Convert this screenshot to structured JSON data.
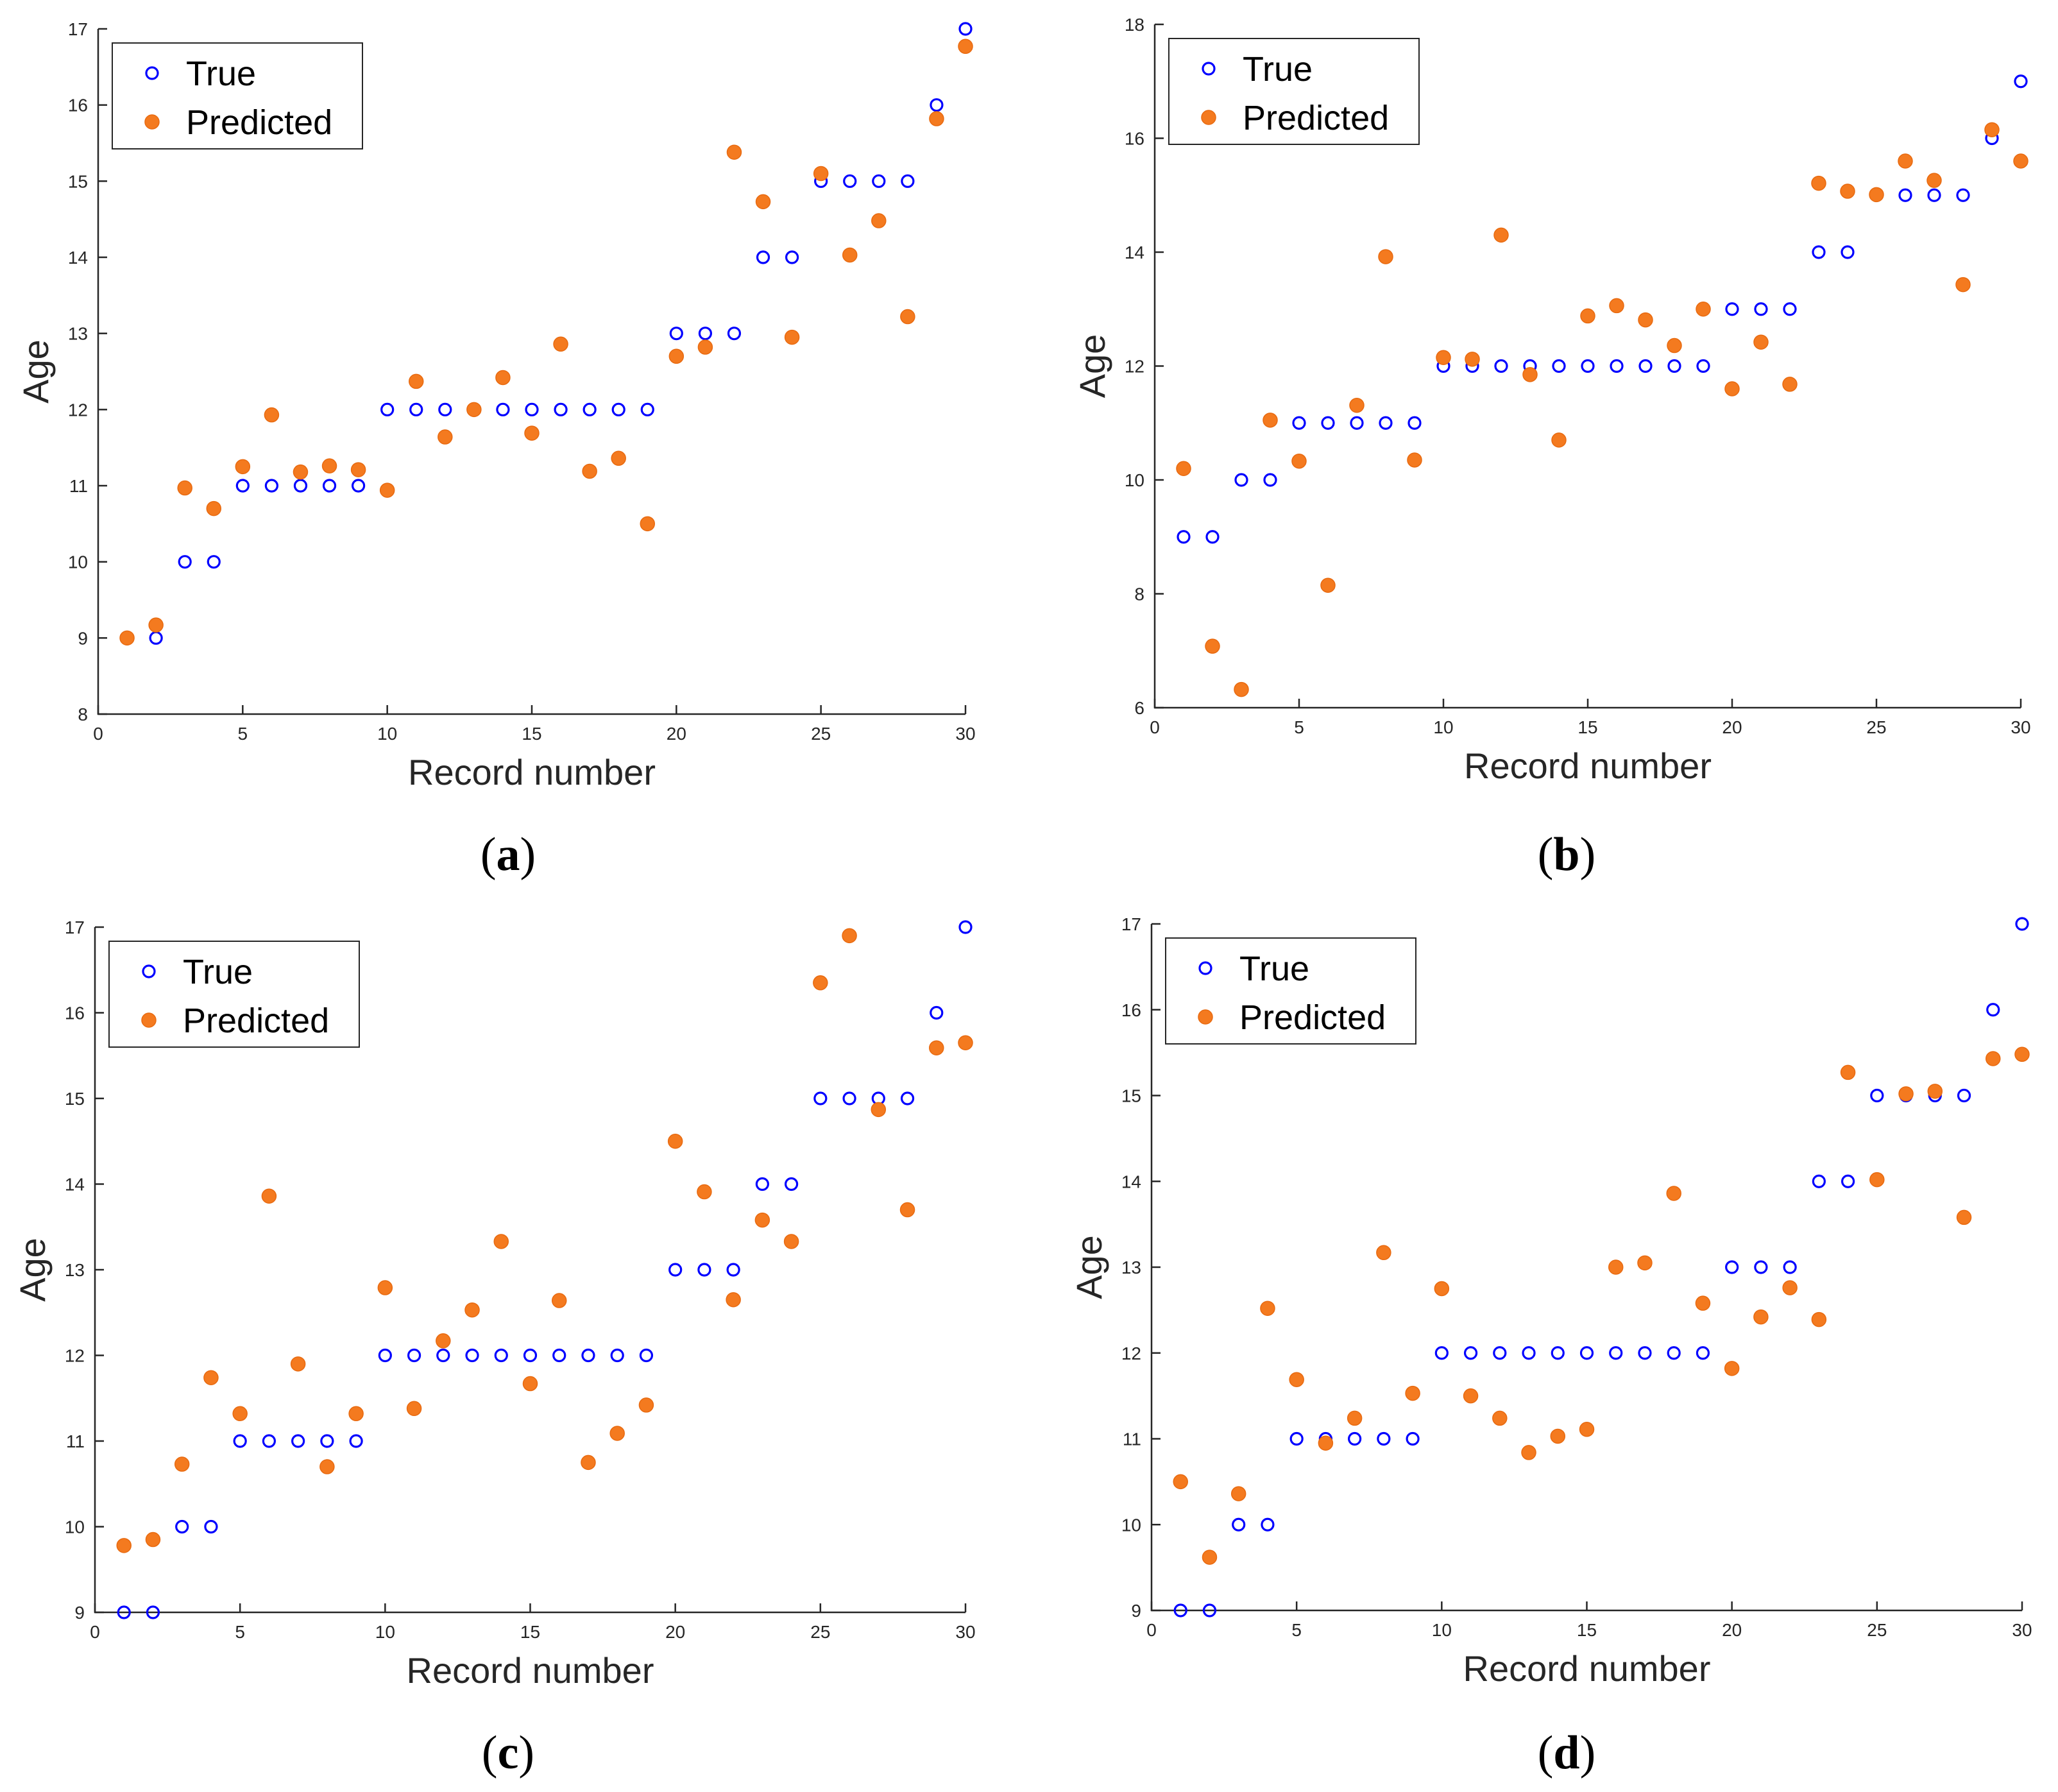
{
  "colors": {
    "true_marker": "#0000ff",
    "predicted_marker": "#f47a1f",
    "axis": "#262626",
    "legend_border": "#262626"
  },
  "chart_data": [
    {
      "type": "scatter",
      "panel_label": "a",
      "caption_open": "(",
      "caption_close": ")",
      "xlabel": "Record number",
      "ylabel": "Age",
      "xlim": [
        0,
        30
      ],
      "ylim": [
        8,
        17
      ],
      "xticks": [
        0,
        5,
        10,
        15,
        20,
        25,
        30
      ],
      "yticks": [
        8,
        9,
        10,
        11,
        12,
        13,
        14,
        15,
        16,
        17
      ],
      "legend": {
        "position": "top-left",
        "entries": [
          "True",
          "Predicted"
        ]
      },
      "x": [
        1,
        2,
        3,
        4,
        5,
        6,
        7,
        8,
        9,
        10,
        11,
        12,
        13,
        14,
        15,
        16,
        17,
        18,
        19,
        20,
        21,
        22,
        23,
        24,
        25,
        26,
        27,
        28,
        29,
        30
      ],
      "series": [
        {
          "name": "True",
          "marker": "open-circle",
          "values": [
            9,
            9,
            10,
            10,
            11,
            11,
            11,
            11,
            11,
            12,
            12,
            12,
            12,
            12,
            12,
            12,
            12,
            12,
            12,
            13,
            13,
            13,
            14,
            14,
            15,
            15,
            15,
            15,
            16,
            17
          ]
        },
        {
          "name": "Predicted",
          "marker": "filled-circle",
          "values": [
            9.0,
            9.17,
            10.97,
            10.7,
            11.25,
            11.93,
            11.18,
            11.26,
            11.21,
            10.94,
            12.37,
            11.64,
            12.0,
            12.42,
            11.69,
            12.86,
            11.19,
            11.36,
            10.5,
            12.7,
            12.82,
            15.38,
            14.73,
            12.95,
            15.1,
            14.03,
            14.48,
            13.22,
            15.82,
            16.77
          ]
        }
      ]
    },
    {
      "type": "scatter",
      "panel_label": "b",
      "caption_open": "(",
      "caption_close": ")",
      "xlabel": "Record number",
      "ylabel": "Age",
      "xlim": [
        0,
        30
      ],
      "ylim": [
        6,
        18
      ],
      "xticks": [
        0,
        5,
        10,
        15,
        20,
        25,
        30
      ],
      "yticks": [
        6,
        8,
        10,
        12,
        14,
        16,
        18
      ],
      "legend": {
        "position": "top-left",
        "entries": [
          "True",
          "Predicted"
        ]
      },
      "x": [
        1,
        2,
        3,
        4,
        5,
        6,
        7,
        8,
        9,
        10,
        11,
        12,
        13,
        14,
        15,
        16,
        17,
        18,
        19,
        20,
        21,
        22,
        23,
        24,
        25,
        26,
        27,
        28,
        29,
        30
      ],
      "series": [
        {
          "name": "True",
          "marker": "open-circle",
          "values": [
            9,
            9,
            10,
            10,
            11,
            11,
            11,
            11,
            11,
            12,
            12,
            12,
            12,
            12,
            12,
            12,
            12,
            12,
            12,
            13,
            13,
            13,
            14,
            14,
            15,
            15,
            15,
            15,
            16,
            17
          ]
        },
        {
          "name": "Predicted",
          "marker": "filled-circle",
          "values": [
            10.2,
            7.08,
            6.32,
            11.05,
            10.33,
            8.15,
            11.31,
            13.92,
            10.35,
            12.15,
            12.12,
            14.3,
            11.85,
            10.7,
            12.88,
            13.06,
            12.81,
            12.36,
            13.0,
            11.6,
            12.42,
            11.68,
            15.21,
            15.07,
            15.01,
            15.6,
            15.26,
            13.43,
            16.15,
            15.6
          ]
        }
      ]
    },
    {
      "type": "scatter",
      "panel_label": "c",
      "caption_open": "(",
      "caption_close": ")",
      "xlabel": "Record number",
      "ylabel": "Age",
      "xlim": [
        0,
        30
      ],
      "ylim": [
        9,
        17
      ],
      "xticks": [
        0,
        5,
        10,
        15,
        20,
        25,
        30
      ],
      "yticks": [
        9,
        10,
        11,
        12,
        13,
        14,
        15,
        16,
        17
      ],
      "legend": {
        "position": "top-left",
        "entries": [
          "True",
          "Predicted"
        ]
      },
      "x": [
        1,
        2,
        3,
        4,
        5,
        6,
        7,
        8,
        9,
        10,
        11,
        12,
        13,
        14,
        15,
        16,
        17,
        18,
        19,
        20,
        21,
        22,
        23,
        24,
        25,
        26,
        27,
        28,
        29,
        30
      ],
      "series": [
        {
          "name": "True",
          "marker": "open-circle",
          "values": [
            9,
            9,
            10,
            10,
            11,
            11,
            11,
            11,
            11,
            12,
            12,
            12,
            12,
            12,
            12,
            12,
            12,
            12,
            12,
            13,
            13,
            13,
            14,
            14,
            15,
            15,
            15,
            15,
            16,
            17
          ]
        },
        {
          "name": "Predicted",
          "marker": "filled-circle",
          "values": [
            9.78,
            9.85,
            10.73,
            11.74,
            11.32,
            13.86,
            11.9,
            10.7,
            11.32,
            12.79,
            11.38,
            12.17,
            12.53,
            13.33,
            11.67,
            12.64,
            10.75,
            11.09,
            11.42,
            14.5,
            13.91,
            12.65,
            13.58,
            13.33,
            16.35,
            16.9,
            14.87,
            13.7,
            15.59,
            15.65
          ]
        }
      ]
    },
    {
      "type": "scatter",
      "panel_label": "d",
      "caption_open": "(",
      "caption_close": ")",
      "xlabel": "Record number",
      "ylabel": "Age",
      "xlim": [
        0,
        30
      ],
      "ylim": [
        9,
        17
      ],
      "xticks": [
        0,
        5,
        10,
        15,
        20,
        25,
        30
      ],
      "yticks": [
        9,
        10,
        11,
        12,
        13,
        14,
        15,
        16,
        17
      ],
      "legend": {
        "position": "top-left",
        "entries": [
          "True",
          "Predicted"
        ]
      },
      "x": [
        1,
        2,
        3,
        4,
        5,
        6,
        7,
        8,
        9,
        10,
        11,
        12,
        13,
        14,
        15,
        16,
        17,
        18,
        19,
        20,
        21,
        22,
        23,
        24,
        25,
        26,
        27,
        28,
        29,
        30
      ],
      "series": [
        {
          "name": "True",
          "marker": "open-circle",
          "values": [
            9,
            9,
            10,
            10,
            11,
            11,
            11,
            11,
            11,
            12,
            12,
            12,
            12,
            12,
            12,
            12,
            12,
            12,
            12,
            13,
            13,
            13,
            14,
            14,
            15,
            15,
            15,
            15,
            16,
            17
          ]
        },
        {
          "name": "Predicted",
          "marker": "filled-circle",
          "values": [
            10.5,
            9.62,
            10.36,
            12.52,
            11.69,
            10.95,
            11.24,
            13.17,
            11.53,
            12.75,
            11.5,
            11.24,
            10.84,
            11.03,
            11.11,
            13.0,
            13.05,
            13.86,
            12.58,
            11.82,
            12.42,
            12.76,
            12.39,
            15.27,
            14.02,
            15.02,
            15.05,
            13.58,
            15.43,
            15.48
          ]
        }
      ]
    }
  ]
}
